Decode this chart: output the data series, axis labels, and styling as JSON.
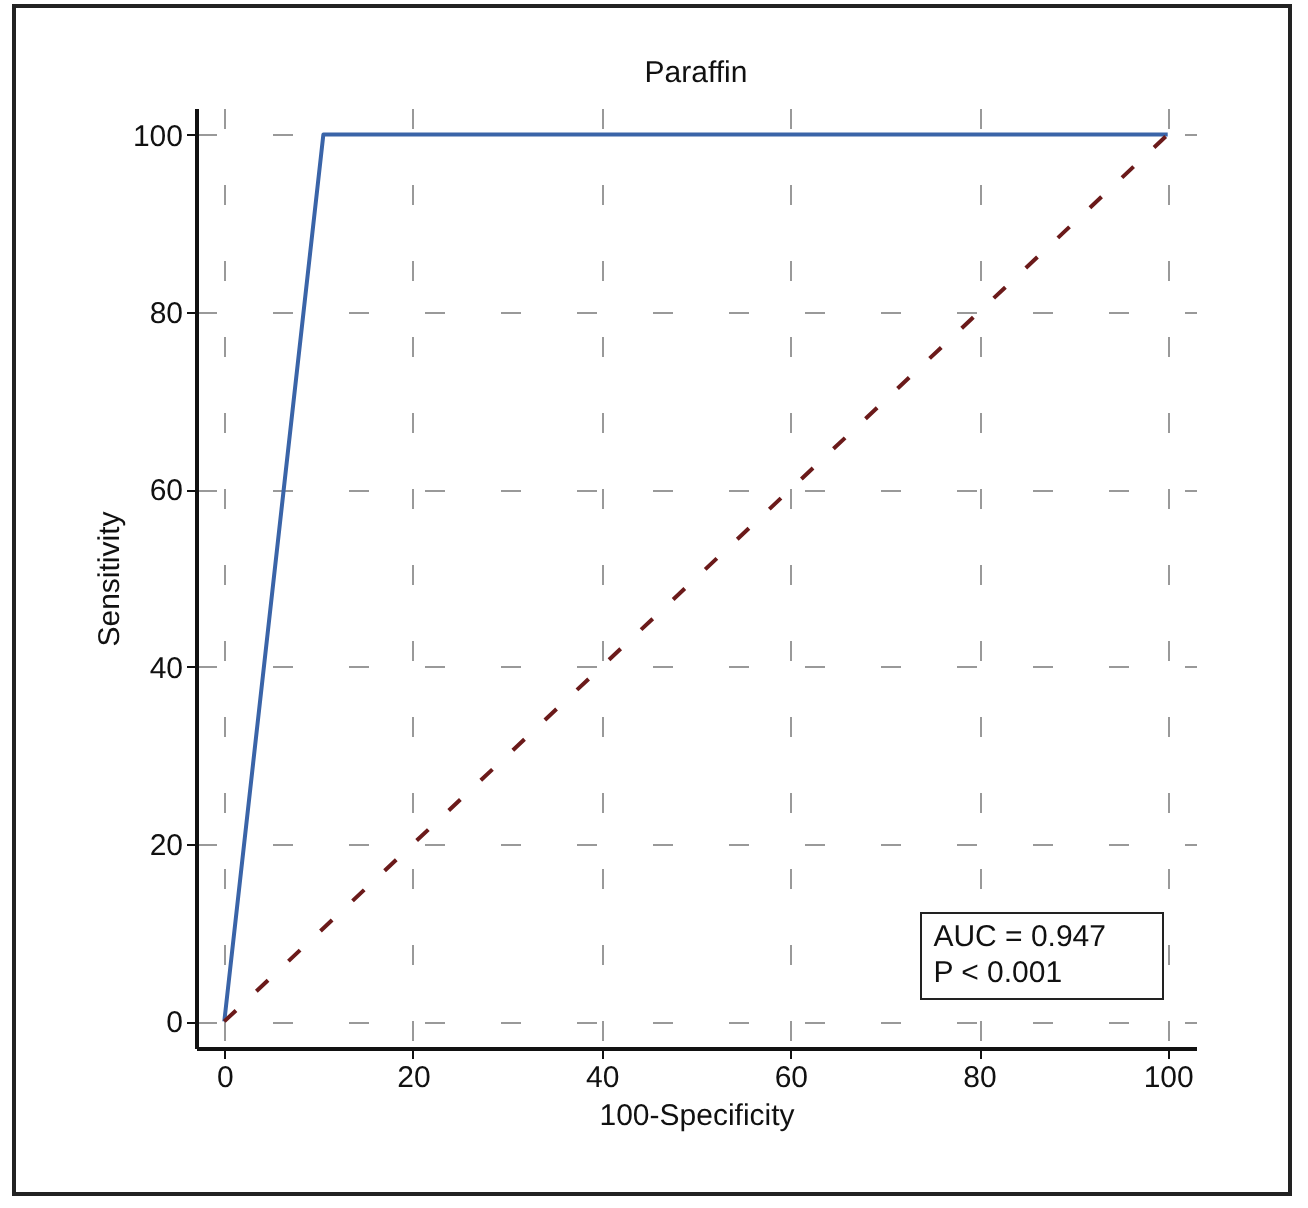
{
  "chart_data": {
    "type": "line",
    "title": "Paraffin",
    "xlabel": "100-Specificity",
    "ylabel": "Sensitivity",
    "series": [
      {
        "x": [
          0,
          10.5,
          100
        ],
        "values": [
          0,
          100,
          100
        ],
        "color": "#3a64a8"
      },
      {
        "x": [
          0,
          100
        ],
        "values": [
          0,
          100
        ],
        "color": "#6b1a1a",
        "line_style": "dashed"
      }
    ],
    "xlim": [
      -3,
      103
    ],
    "ylim": [
      -3,
      103
    ],
    "xticks": [
      0,
      20,
      40,
      60,
      80,
      100
    ],
    "yticks": [
      0,
      20,
      40,
      60,
      80,
      100
    ],
    "grid": true,
    "marker": "none",
    "annotations": [
      "AUC = 0.947",
      "P < 0.001"
    ]
  }
}
